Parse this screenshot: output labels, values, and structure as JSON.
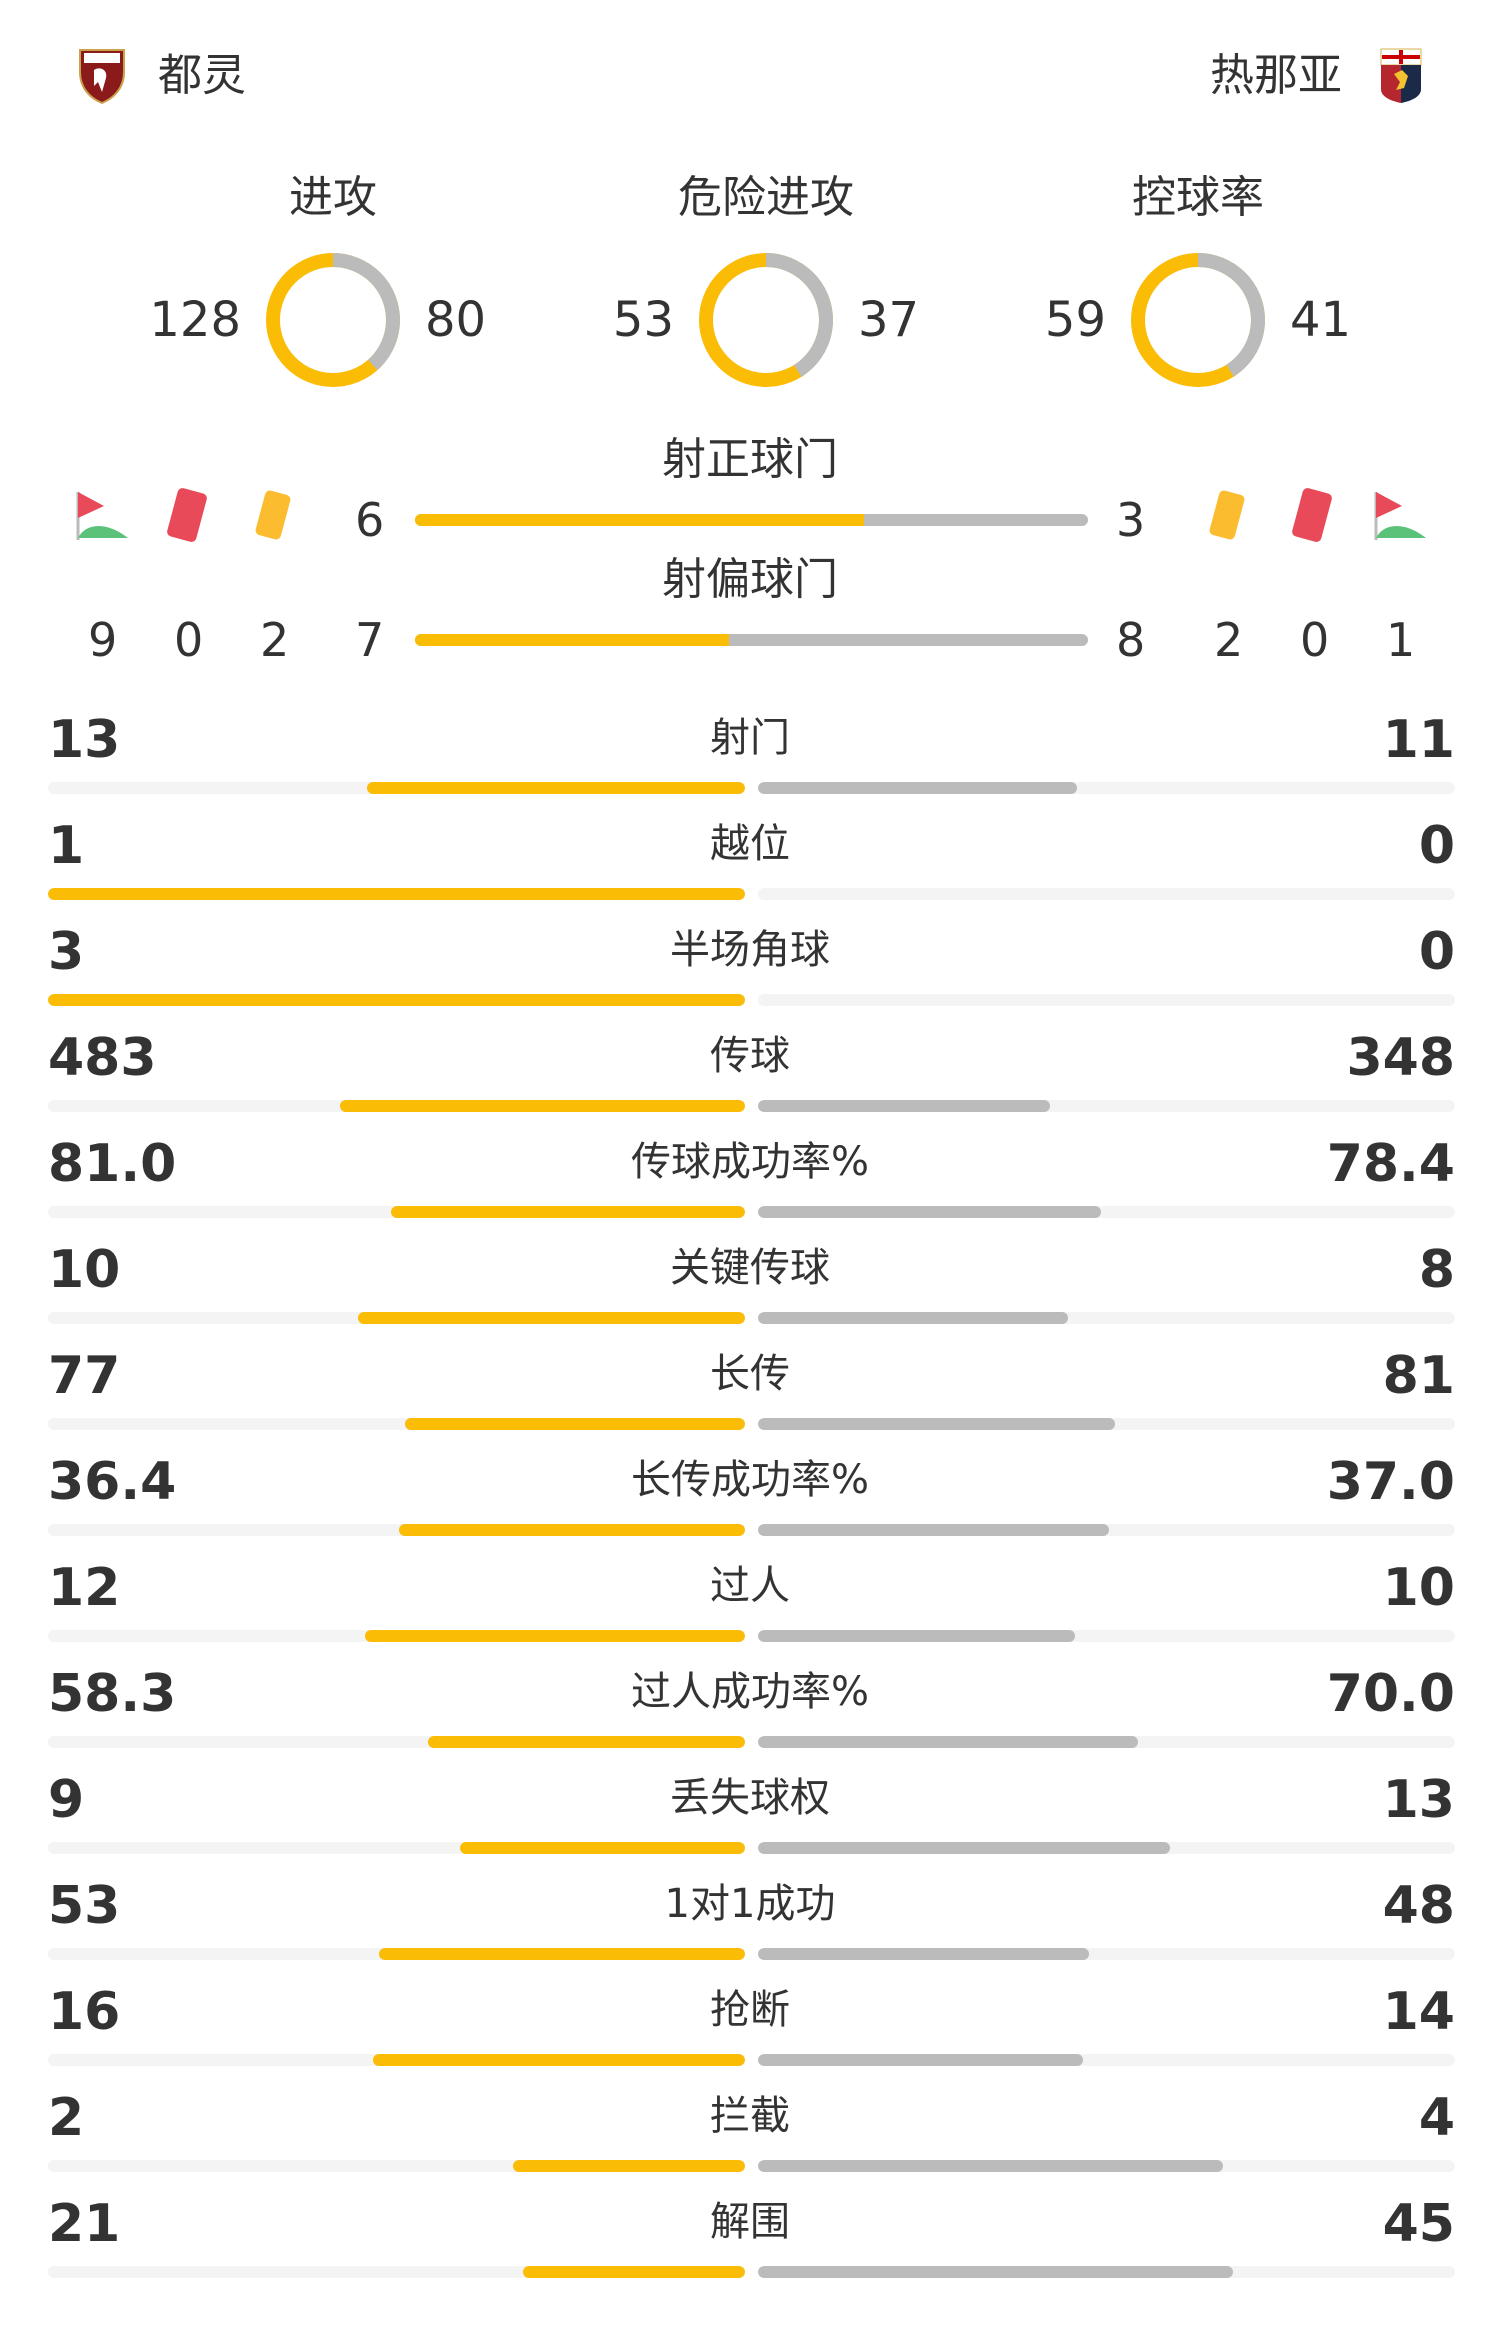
{
  "home": {
    "name": "都灵",
    "logo_text": "TORINO FC",
    "color": "#8b1a1a"
  },
  "away": {
    "name": "热那亚",
    "logo_text": "Genoa",
    "color": "#b5262e"
  },
  "colors": {
    "home": "#fbbc05",
    "away": "#bbbbbb",
    "track": "#f4f4f4",
    "text": "#333333"
  },
  "donuts": [
    {
      "label": "进攻",
      "home": "128",
      "away": "80"
    },
    {
      "label": "危险进攻",
      "home": "53",
      "away": "37"
    },
    {
      "label": "控球率",
      "home": "59",
      "away": "41"
    }
  ],
  "shots_on_target": {
    "label": "射正球门",
    "home": "6",
    "away": "3"
  },
  "shots_off_target": {
    "label": "射偏球门",
    "home": "7",
    "away": "8"
  },
  "home_icons": {
    "corners": "9",
    "red_cards": "0",
    "yellow_cards": "2"
  },
  "away_icons": {
    "yellow_cards": "2",
    "red_cards": "0",
    "corners": "1"
  },
  "stats": [
    {
      "label": "射门",
      "home": "13",
      "away": "11"
    },
    {
      "label": "越位",
      "home": "1",
      "away": "0"
    },
    {
      "label": "半场角球",
      "home": "3",
      "away": "0"
    },
    {
      "label": "传球",
      "home": "483",
      "away": "348"
    },
    {
      "label": "传球成功率%",
      "home": "81.0",
      "away": "78.4"
    },
    {
      "label": "关键传球",
      "home": "10",
      "away": "8"
    },
    {
      "label": "长传",
      "home": "77",
      "away": "81"
    },
    {
      "label": "长传成功率%",
      "home": "36.4",
      "away": "37.0"
    },
    {
      "label": "过人",
      "home": "12",
      "away": "10"
    },
    {
      "label": "过人成功率%",
      "home": "58.3",
      "away": "70.0"
    },
    {
      "label": "丢失球权",
      "home": "9",
      "away": "13"
    },
    {
      "label": "1对1成功",
      "home": "53",
      "away": "48"
    },
    {
      "label": "抢断",
      "home": "16",
      "away": "14"
    },
    {
      "label": "拦截",
      "home": "2",
      "away": "4"
    },
    {
      "label": "解围",
      "home": "21",
      "away": "45"
    }
  ]
}
